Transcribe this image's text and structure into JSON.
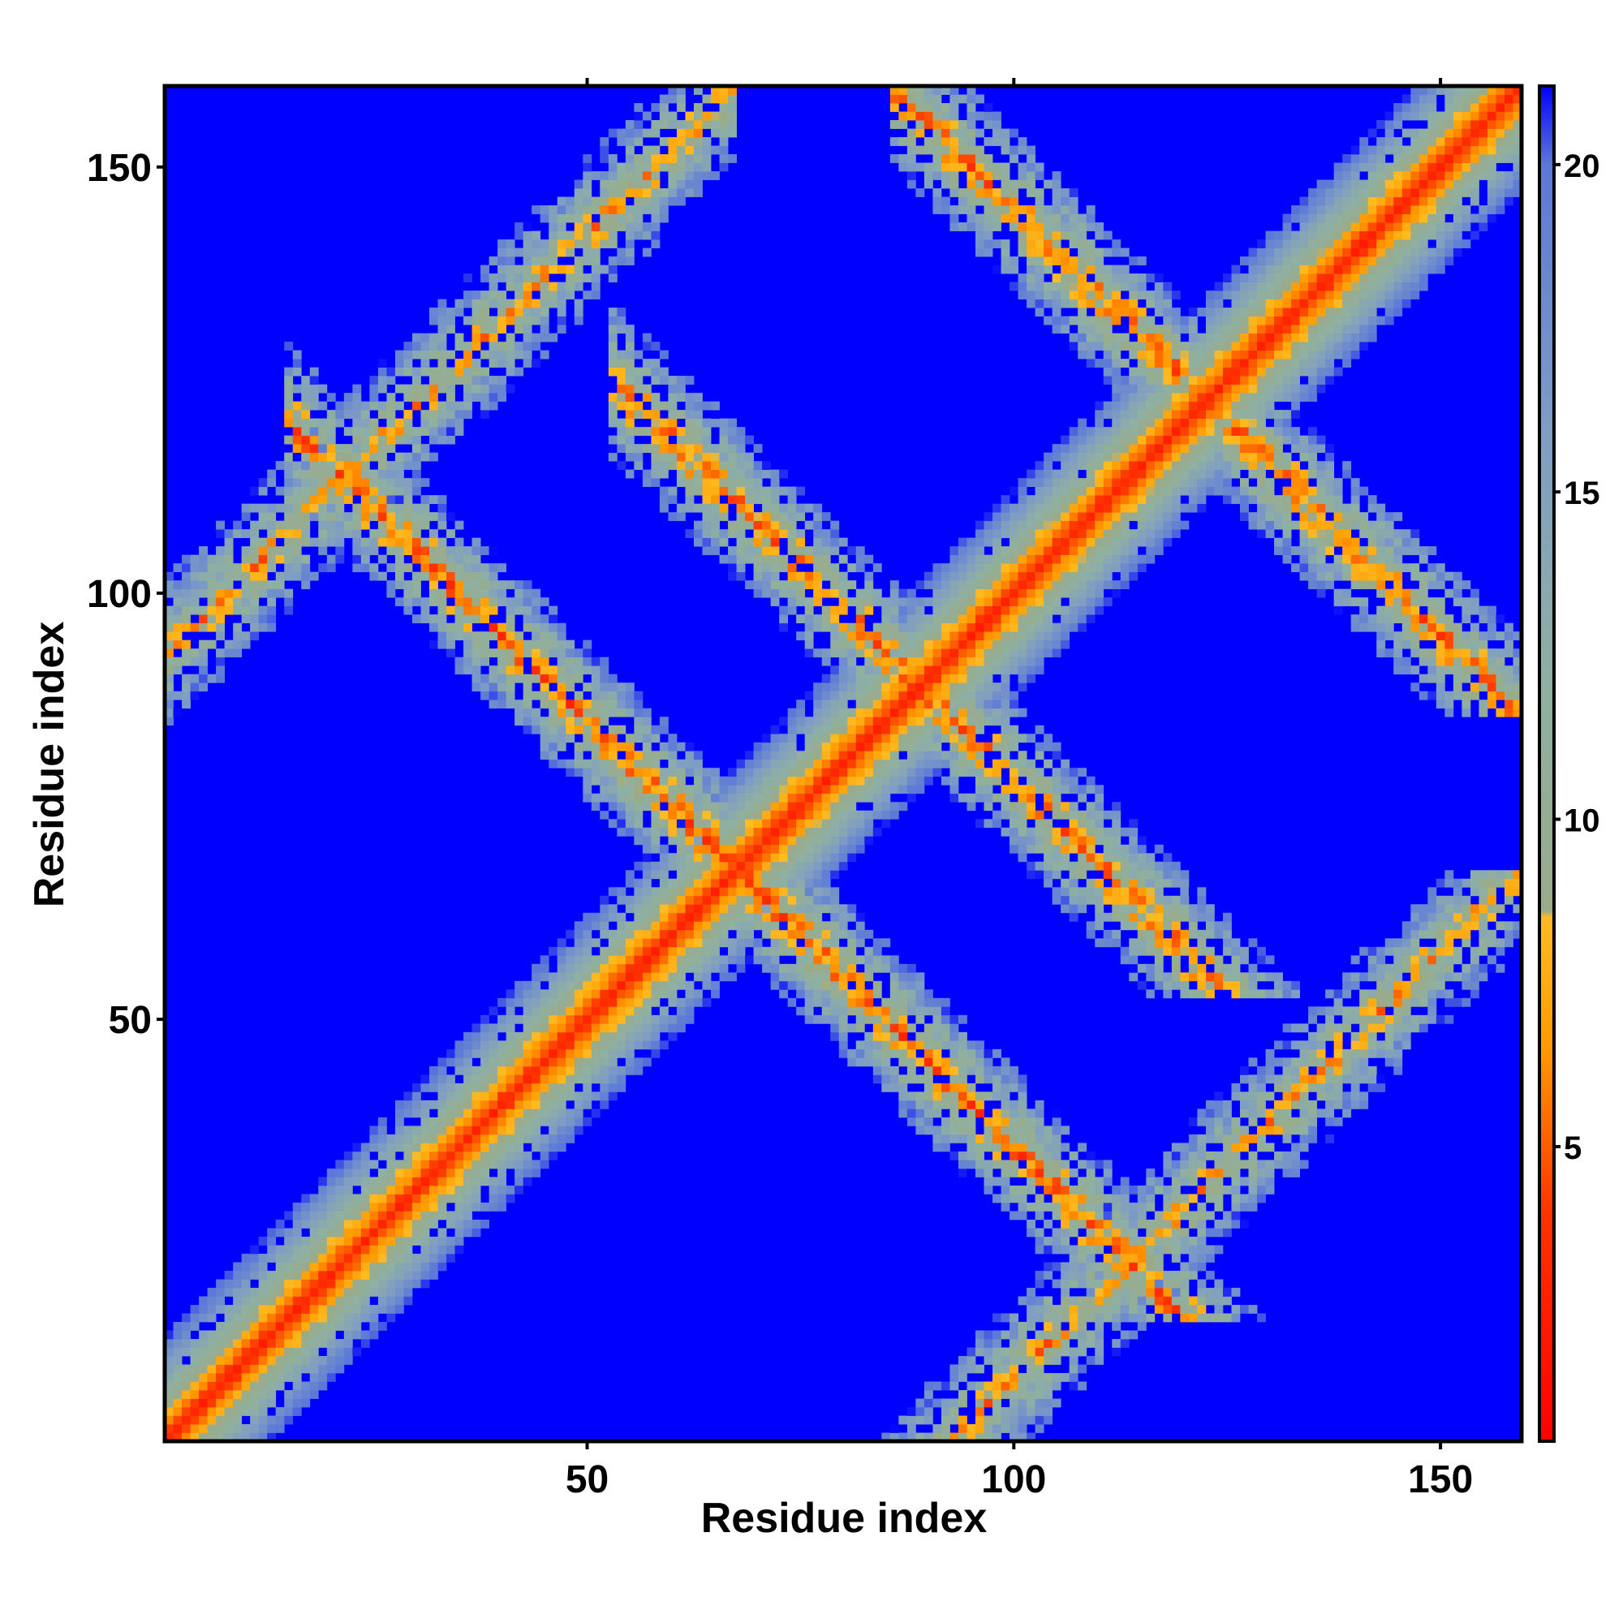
{
  "chart_data": {
    "type": "heatmap",
    "title": "",
    "xlabel": "Residue index",
    "ylabel": "Residue index",
    "n_residues": 159,
    "xlim": [
      1,
      159
    ],
    "ylim": [
      1,
      159
    ],
    "x_ticks": [
      50,
      100,
      150
    ],
    "y_ticks": [
      50,
      100,
      150
    ],
    "colorbar": {
      "range": [
        0.5,
        21.2
      ],
      "ticks": [
        5,
        10,
        15,
        20
      ],
      "stops": [
        {
          "value": 0.5,
          "color": "#ff0000"
        },
        {
          "value": 4.0,
          "color": "#ff3300"
        },
        {
          "value": 6.5,
          "color": "#ff9900"
        },
        {
          "value": 8.5,
          "color": "#ffbb22"
        },
        {
          "value": 8.6,
          "color": "#9aab8a"
        },
        {
          "value": 12.0,
          "color": "#8fb0a2"
        },
        {
          "value": 16.0,
          "color": "#7f9cc4"
        },
        {
          "value": 20.0,
          "color": "#5a78d8"
        },
        {
          "value": 21.2,
          "color": "#0000ff"
        }
      ]
    },
    "background_value": 21.2,
    "structure": {
      "diagonal_band": {
        "direction": "parallel",
        "offset": 0,
        "width": 12
      },
      "antiparallel_bands": [
        {
          "sum": 135,
          "from_i": 15,
          "to_i": 120,
          "width": 9
        },
        {
          "sum": 178,
          "from_i": 55,
          "to_i": 125,
          "width": 9
        },
        {
          "sum": 245,
          "from_i": 85,
          "to_i": 159,
          "width": 9
        }
      ],
      "parallel_bands": [
        {
          "offset": 92,
          "from_i": 1,
          "to_i": 67,
          "width": 9
        }
      ]
    }
  }
}
